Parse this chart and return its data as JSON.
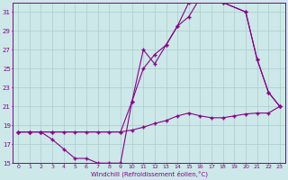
{
  "xlabel": "Windchill (Refroidissement éolien,°C)",
  "bg_color": "#cce8e8",
  "line_color": "#880088",
  "grid_color": "#aacccc",
  "xlim": [
    -0.5,
    23.5
  ],
  "ylim": [
    15,
    32
  ],
  "yticks": [
    15,
    17,
    19,
    21,
    23,
    25,
    27,
    29,
    31
  ],
  "xticks": [
    0,
    1,
    2,
    3,
    4,
    5,
    6,
    7,
    8,
    9,
    10,
    11,
    12,
    13,
    14,
    15,
    16,
    17,
    18,
    19,
    20,
    21,
    22,
    23
  ],
  "line1_x": [
    0,
    1,
    2,
    3,
    4,
    5,
    6,
    7,
    8,
    9,
    10,
    11,
    12,
    13,
    14,
    15,
    16,
    17,
    18,
    19,
    20,
    21,
    22,
    23
  ],
  "line1_y": [
    18.3,
    18.3,
    18.3,
    18.3,
    18.3,
    18.3,
    18.3,
    18.3,
    18.3,
    18.3,
    18.5,
    18.8,
    19.2,
    19.5,
    20.0,
    20.3,
    20.0,
    19.8,
    19.8,
    20.0,
    20.2,
    20.3,
    20.3,
    21.0
  ],
  "line2_x": [
    0,
    1,
    2,
    3,
    4,
    5,
    6,
    7,
    8,
    9,
    10,
    11,
    12,
    13,
    14,
    15,
    16,
    17,
    18,
    20,
    21,
    22,
    23
  ],
  "line2_y": [
    18.3,
    18.3,
    18.3,
    17.5,
    16.5,
    15.5,
    15.5,
    15.0,
    15.0,
    15.0,
    21.5,
    25.0,
    26.5,
    27.5,
    29.5,
    30.5,
    32.5,
    32.5,
    32.0,
    31.0,
    26.0,
    22.5,
    21.0
  ],
  "line3_x": [
    0,
    1,
    2,
    3,
    9,
    10,
    11,
    12,
    13,
    14,
    15,
    16,
    17,
    18,
    20,
    21,
    22,
    23
  ],
  "line3_y": [
    18.3,
    18.3,
    18.3,
    18.3,
    18.3,
    21.5,
    27.0,
    25.5,
    27.5,
    29.5,
    32.0,
    32.5,
    32.5,
    32.0,
    31.0,
    26.0,
    22.5,
    21.0
  ],
  "marker": "+",
  "markersize": 2.5,
  "linewidth": 0.8,
  "xlabel_fontsize": 5,
  "tick_fontsize": 4.5
}
